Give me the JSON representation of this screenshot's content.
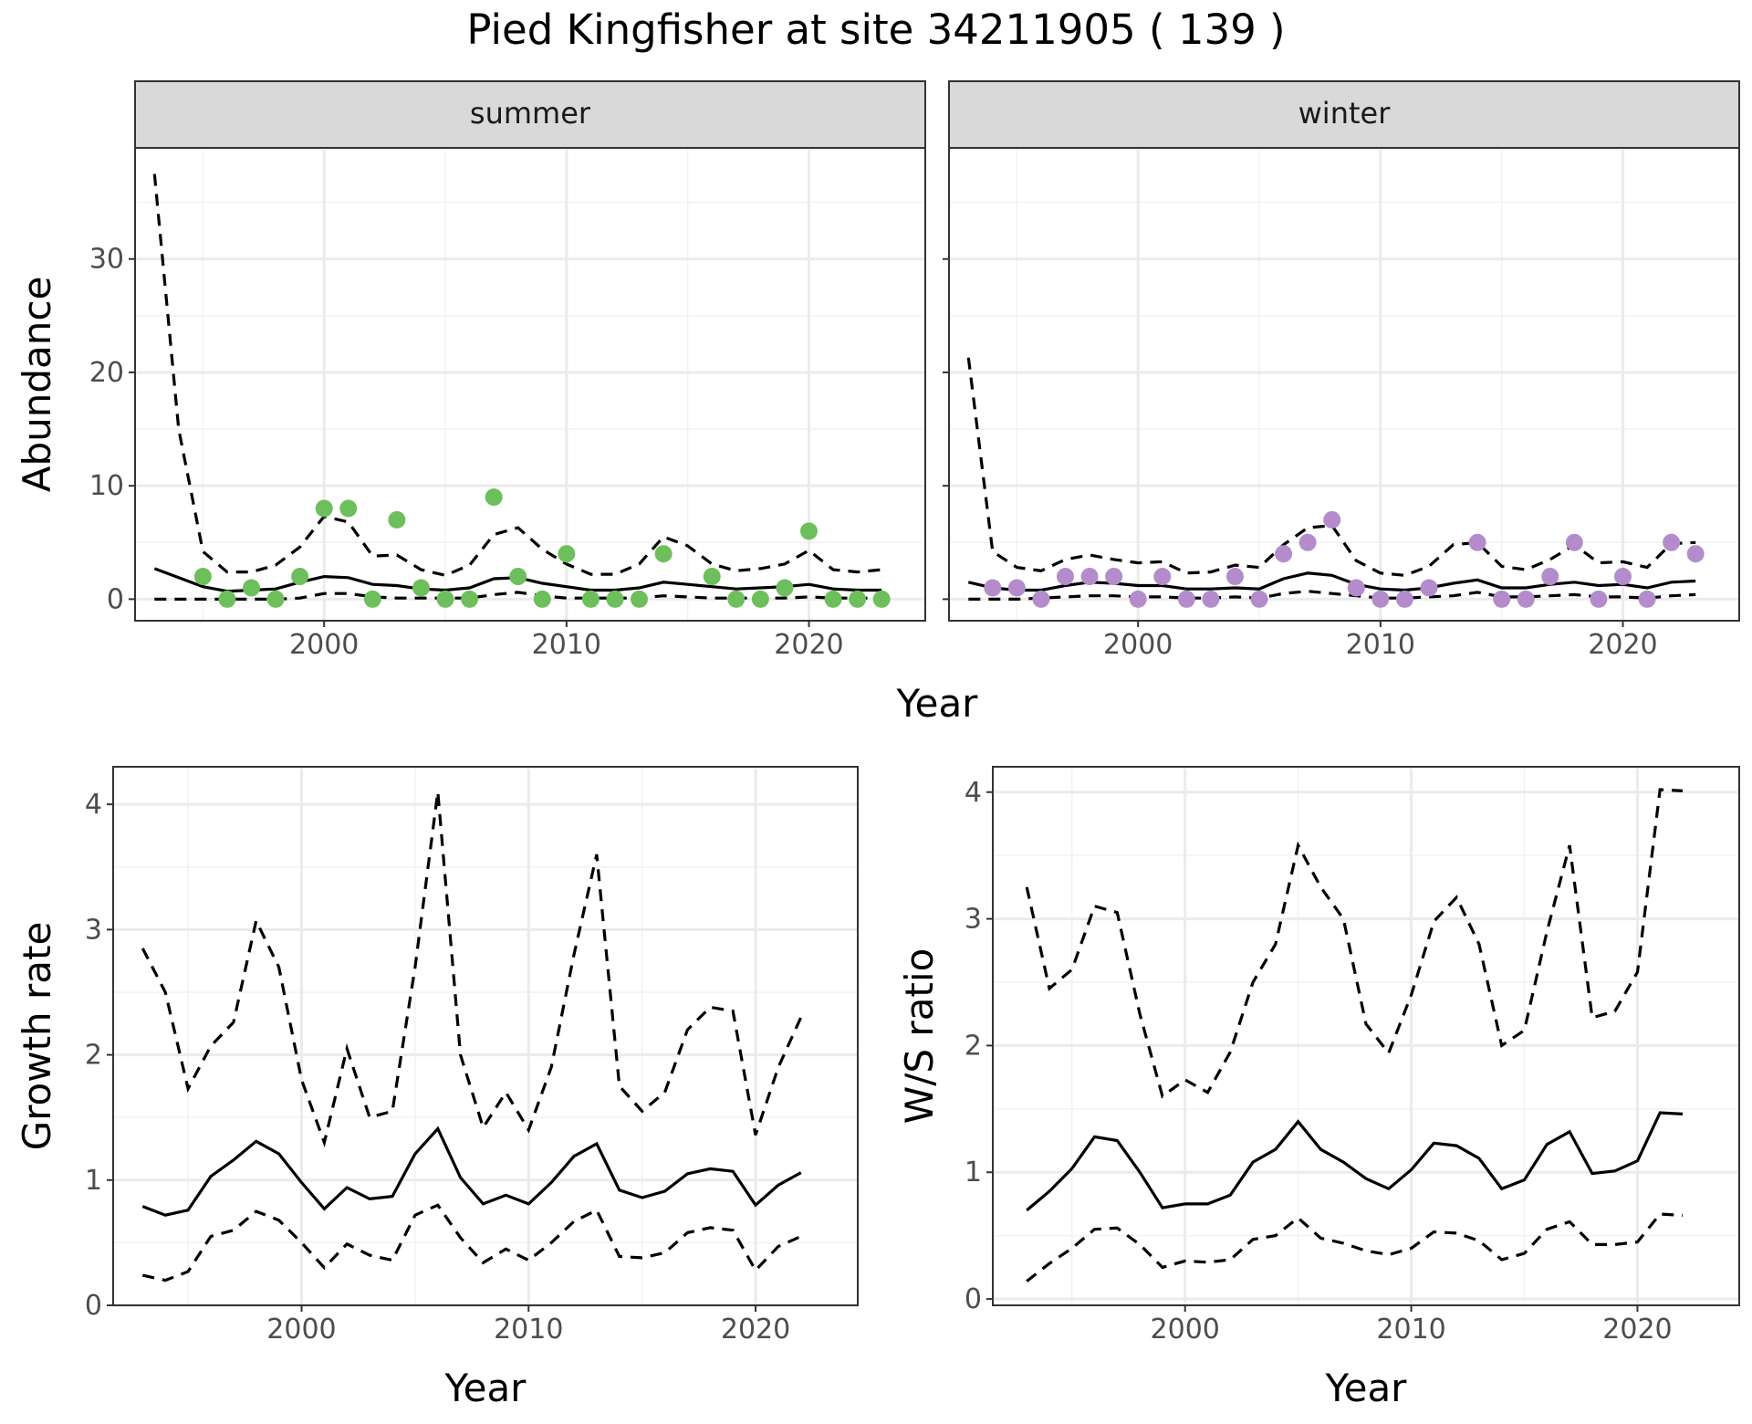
{
  "title": "Pied Kingfisher at site 34211905 ( 139 )",
  "colors": {
    "summer_points": "#6dbf5b",
    "winter_points": "#b48ccc"
  },
  "chart_data": [
    {
      "id": "abundance",
      "type": "scatter",
      "facets": [
        "summer",
        "winter"
      ],
      "xlabel": "Year",
      "ylabel": "Abundance",
      "xlim": [
        1992.2,
        2024.8
      ],
      "ylim": [
        -1.9,
        39.8
      ],
      "x_ticks": [
        2000,
        2010,
        2020
      ],
      "y_ticks": [
        0,
        10,
        20,
        30
      ],
      "grid": true,
      "panels": [
        {
          "label": "summer",
          "point_color": "#6dbf5b",
          "x": [
            1993,
            1994,
            1995,
            1996,
            1997,
            1998,
            1999,
            2000,
            2001,
            2002,
            2003,
            2004,
            2005,
            2006,
            2007,
            2008,
            2009,
            2010,
            2011,
            2012,
            2013,
            2014,
            2015,
            2016,
            2017,
            2018,
            2019,
            2020,
            2021,
            2022,
            2023
          ],
          "mid": [
            2.7,
            1.9,
            1.1,
            0.7,
            0.8,
            0.9,
            1.5,
            2.0,
            1.9,
            1.3,
            1.2,
            0.9,
            0.8,
            1.0,
            1.8,
            1.9,
            1.4,
            1.1,
            0.8,
            0.8,
            1.0,
            1.5,
            1.3,
            1.1,
            0.9,
            1.0,
            1.1,
            1.3,
            0.9,
            0.8,
            0.8
          ],
          "upper": [
            37.5,
            15.0,
            4.2,
            2.4,
            2.4,
            3.0,
            4.6,
            7.3,
            6.8,
            3.8,
            3.9,
            2.6,
            2.1,
            3.0,
            5.7,
            6.3,
            4.4,
            3.1,
            2.2,
            2.2,
            3.1,
            5.5,
            4.7,
            3.1,
            2.5,
            2.7,
            3.1,
            4.3,
            2.6,
            2.4,
            2.6
          ],
          "lower": [
            0.0,
            0.0,
            0.0,
            0.0,
            0.0,
            0.0,
            0.1,
            0.5,
            0.5,
            0.2,
            0.1,
            0.1,
            0.1,
            0.1,
            0.4,
            0.6,
            0.3,
            0.1,
            0.1,
            0.1,
            0.1,
            0.3,
            0.2,
            0.1,
            0.1,
            0.1,
            0.1,
            0.2,
            0.1,
            0.1,
            0.1
          ],
          "obs_x": [
            1995,
            1996,
            1997,
            1998,
            1999,
            2000,
            2001,
            2002,
            2003,
            2004,
            2005,
            2006,
            2007,
            2008,
            2009,
            2010,
            2011,
            2012,
            2013,
            2014,
            2016,
            2017,
            2018,
            2019,
            2020,
            2021,
            2022,
            2023
          ],
          "obs_y": [
            2,
            0,
            1,
            0,
            2,
            8,
            8,
            0,
            7,
            1,
            0,
            0,
            9,
            2,
            0,
            4,
            0,
            0,
            0,
            4,
            2,
            0,
            0,
            1,
            6,
            0,
            0,
            0
          ]
        },
        {
          "label": "winter",
          "point_color": "#b48ccc",
          "x": [
            1993,
            1994,
            1995,
            1996,
            1997,
            1998,
            1999,
            2000,
            2001,
            2002,
            2003,
            2004,
            2005,
            2006,
            2007,
            2008,
            2009,
            2010,
            2011,
            2012,
            2013,
            2014,
            2015,
            2016,
            2017,
            2018,
            2019,
            2020,
            2021,
            2022,
            2023
          ],
          "mid": [
            1.5,
            1.0,
            0.8,
            0.8,
            1.2,
            1.5,
            1.4,
            1.2,
            1.2,
            0.9,
            0.9,
            1.0,
            0.9,
            1.8,
            2.3,
            2.1,
            1.3,
            0.9,
            0.8,
            1.0,
            1.4,
            1.7,
            1.0,
            1.0,
            1.3,
            1.5,
            1.2,
            1.3,
            1.0,
            1.5,
            1.6
          ],
          "upper": [
            21.3,
            4.2,
            2.8,
            2.5,
            3.5,
            3.9,
            3.5,
            3.2,
            3.3,
            2.3,
            2.4,
            3.0,
            2.8,
            4.8,
            6.3,
            6.5,
            3.4,
            2.3,
            2.1,
            2.9,
            4.8,
            5.0,
            2.9,
            2.6,
            3.5,
            4.8,
            3.2,
            3.3,
            2.8,
            4.9,
            5.0
          ],
          "lower": [
            0.0,
            0.0,
            0.0,
            0.1,
            0.2,
            0.3,
            0.3,
            0.2,
            0.2,
            0.1,
            0.1,
            0.2,
            0.1,
            0.5,
            0.7,
            0.5,
            0.3,
            0.1,
            0.1,
            0.2,
            0.3,
            0.6,
            0.2,
            0.2,
            0.3,
            0.4,
            0.2,
            0.2,
            0.1,
            0.3,
            0.4
          ],
          "obs_x": [
            1994,
            1995,
            1996,
            1997,
            1998,
            1999,
            2000,
            2001,
            2002,
            2003,
            2004,
            2005,
            2006,
            2007,
            2008,
            2009,
            2010,
            2011,
            2012,
            2014,
            2015,
            2016,
            2017,
            2018,
            2019,
            2020,
            2021,
            2022,
            2023
          ],
          "obs_y": [
            1,
            1,
            0,
            2,
            2,
            2,
            0,
            2,
            0,
            0,
            2,
            0,
            4,
            5,
            7,
            1,
            0,
            0,
            1,
            5,
            0,
            0,
            2,
            5,
            0,
            2,
            0,
            5,
            4
          ]
        }
      ]
    },
    {
      "id": "growth",
      "type": "line",
      "xlabel": "Year",
      "ylabel": "Growth rate",
      "xlim": [
        1991.7,
        2024.5
      ],
      "ylim": [
        0,
        4.3
      ],
      "x_ticks": [
        2000,
        2010,
        2020
      ],
      "y_ticks": [
        0,
        1,
        2,
        3,
        4
      ],
      "grid": true,
      "x": [
        1993,
        1994,
        1995,
        1996,
        1997,
        1998,
        1999,
        2000,
        2001,
        2002,
        2003,
        2004,
        2005,
        2006,
        2007,
        2008,
        2009,
        2010,
        2011,
        2012,
        2013,
        2014,
        2015,
        2016,
        2017,
        2018,
        2019,
        2020,
        2021,
        2022
      ],
      "mid": [
        0.79,
        0.72,
        0.76,
        1.03,
        1.16,
        1.31,
        1.21,
        0.98,
        0.77,
        0.94,
        0.85,
        0.87,
        1.21,
        1.41,
        1.02,
        0.81,
        0.88,
        0.81,
        0.98,
        1.19,
        1.29,
        0.92,
        0.86,
        0.91,
        1.05,
        1.09,
        1.07,
        0.8,
        0.96,
        1.06
      ],
      "upper": [
        2.85,
        2.5,
        1.73,
        2.07,
        2.26,
        3.07,
        2.7,
        1.8,
        1.3,
        2.05,
        1.5,
        1.55,
        2.7,
        4.1,
        2.0,
        1.42,
        1.7,
        1.4,
        1.9,
        2.8,
        3.6,
        1.75,
        1.55,
        1.7,
        2.2,
        2.38,
        2.35,
        1.36,
        1.9,
        2.3
      ],
      "lower": [
        0.24,
        0.2,
        0.27,
        0.55,
        0.6,
        0.75,
        0.68,
        0.5,
        0.3,
        0.49,
        0.4,
        0.36,
        0.72,
        0.8,
        0.54,
        0.34,
        0.45,
        0.36,
        0.5,
        0.67,
        0.76,
        0.39,
        0.38,
        0.42,
        0.58,
        0.62,
        0.6,
        0.28,
        0.47,
        0.55
      ]
    },
    {
      "id": "ws_ratio",
      "type": "line",
      "xlabel": "Year",
      "ylabel": "W/S ratio",
      "xlim": [
        1991.5,
        2024.5
      ],
      "ylim": [
        -0.05,
        4.2
      ],
      "x_ticks": [
        2000,
        2010,
        2020
      ],
      "y_ticks": [
        0,
        1,
        2,
        3,
        4
      ],
      "grid": true,
      "x": [
        1993,
        1994,
        1995,
        1996,
        1997,
        1998,
        1999,
        2000,
        2001,
        2002,
        2003,
        2004,
        2005,
        2006,
        2007,
        2008,
        2009,
        2010,
        2011,
        2012,
        2013,
        2014,
        2015,
        2016,
        2017,
        2018,
        2019,
        2020,
        2021,
        2022
      ],
      "mid": [
        0.7,
        0.85,
        1.03,
        1.28,
        1.25,
        1.0,
        0.72,
        0.75,
        0.75,
        0.82,
        1.08,
        1.18,
        1.4,
        1.18,
        1.08,
        0.95,
        0.87,
        1.02,
        1.23,
        1.21,
        1.11,
        0.87,
        0.94,
        1.22,
        1.32,
        0.99,
        1.01,
        1.09,
        1.47,
        1.46
      ],
      "upper": [
        3.25,
        2.45,
        2.6,
        3.1,
        3.05,
        2.25,
        1.6,
        1.73,
        1.63,
        1.95,
        2.5,
        2.8,
        3.58,
        3.25,
        3.0,
        2.17,
        1.94,
        2.4,
        2.98,
        3.17,
        2.8,
        2.0,
        2.12,
        2.9,
        3.58,
        2.22,
        2.27,
        2.58,
        4.02,
        4.01
      ],
      "lower": [
        0.14,
        0.28,
        0.4,
        0.55,
        0.56,
        0.43,
        0.25,
        0.3,
        0.29,
        0.31,
        0.47,
        0.5,
        0.64,
        0.48,
        0.44,
        0.38,
        0.35,
        0.4,
        0.53,
        0.52,
        0.46,
        0.31,
        0.36,
        0.55,
        0.61,
        0.43,
        0.43,
        0.45,
        0.67,
        0.66
      ]
    }
  ]
}
